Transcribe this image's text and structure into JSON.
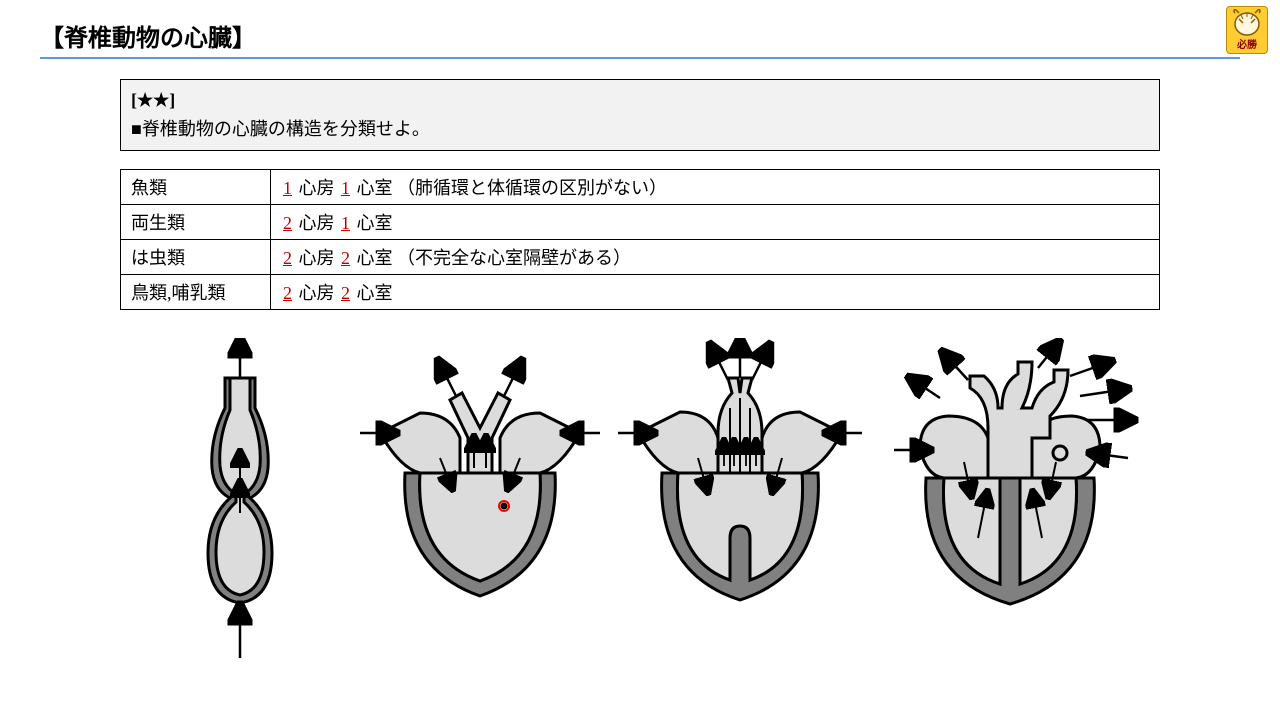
{
  "header": {
    "title": "【脊椎動物の心臓】",
    "underline_color": "#5b9bd5"
  },
  "badge": {
    "text": "必勝",
    "bg": "#ffcc33"
  },
  "question": {
    "stars": "[★★]",
    "prompt": "■脊椎動物の心臓の構造を分類せよ。"
  },
  "table": {
    "rows": [
      {
        "label": "魚類",
        "a": "1",
        "mid1": "心房",
        "b": "1",
        "mid2": "心室",
        "tail": "（肺循環と体循環の区別がない）"
      },
      {
        "label": "両生類",
        "a": "2",
        "mid1": "心房",
        "b": "1",
        "mid2": "心室",
        "tail": ""
      },
      {
        "label": "は虫類",
        "a": "2",
        "mid1": "心房",
        "b": "2",
        "mid2": "心室",
        "tail": "（不完全な心室隔壁がある）"
      },
      {
        "label": "鳥類,哺乳類",
        "a": "2",
        "mid1": "心房",
        "b": "2",
        "mid2": "心室",
        "tail": ""
      }
    ],
    "number_color": "#c00000"
  },
  "diagrams": {
    "types": [
      "fish",
      "amphibian",
      "reptile",
      "bird-mammal"
    ],
    "fill_color": "#dcdcdc",
    "wall_color": "#808080",
    "stroke_color": "#000000",
    "red_marker_color": "#ff0000"
  }
}
